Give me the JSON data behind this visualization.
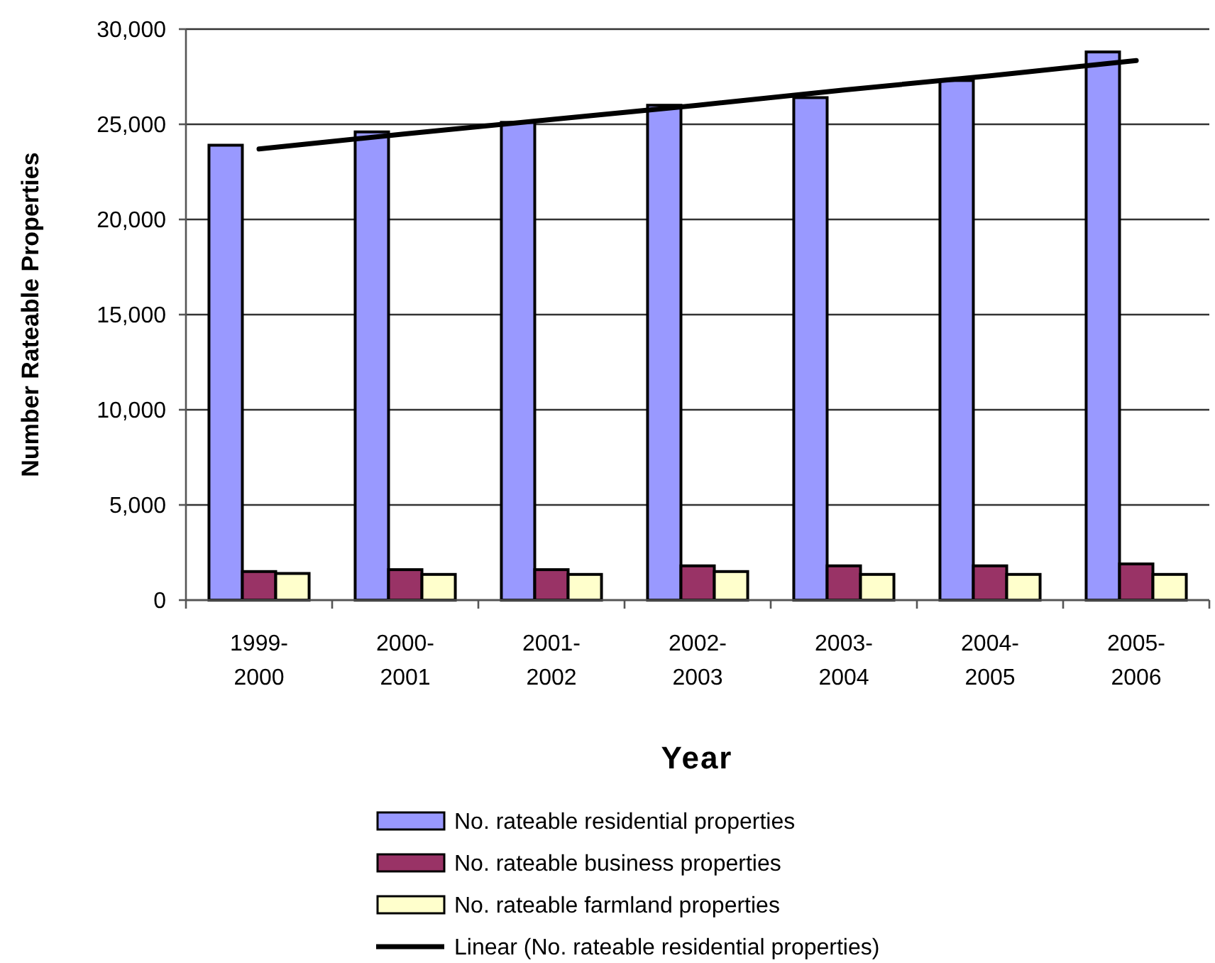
{
  "chart_data": {
    "type": "bar",
    "xlabel": "Year",
    "ylabel": "Number Rateable Properties",
    "categories": [
      "1999-2000",
      "2000-2001",
      "2001-2002",
      "2002-2003",
      "2003-2004",
      "2004-2005",
      "2005-2006"
    ],
    "series": [
      {
        "name": "No. rateable residential properties",
        "color": "#9999ff",
        "values": [
          23900,
          24600,
          25100,
          26000,
          26400,
          27300,
          28800
        ]
      },
      {
        "name": "No. rateable business properties",
        "color": "#993366",
        "values": [
          1500,
          1600,
          1600,
          1800,
          1800,
          1800,
          1900
        ]
      },
      {
        "name": "No. rateable farmland properties",
        "color": "#ffffcc",
        "values": [
          1400,
          1350,
          1350,
          1500,
          1350,
          1350,
          1350
        ]
      },
      {
        "name": "Linear (No. rateable residential properties)",
        "type": "line",
        "color": "#000000",
        "values": [
          23700,
          24500,
          25250,
          26000,
          26800,
          27550,
          28350
        ]
      }
    ],
    "ylim": [
      0,
      30000
    ],
    "yticks": [
      0,
      {
        "value": 5000,
        "label": "5,000"
      },
      {
        "value": 10000,
        "label": "10,000"
      },
      {
        "value": 15000,
        "label": "15,000"
      },
      {
        "value": 20000,
        "label": "20,000"
      },
      {
        "value": 25000,
        "label": "25,000"
      },
      {
        "value": 30000,
        "label": "30,000"
      }
    ],
    "grid": "y",
    "legend": "bottom"
  }
}
